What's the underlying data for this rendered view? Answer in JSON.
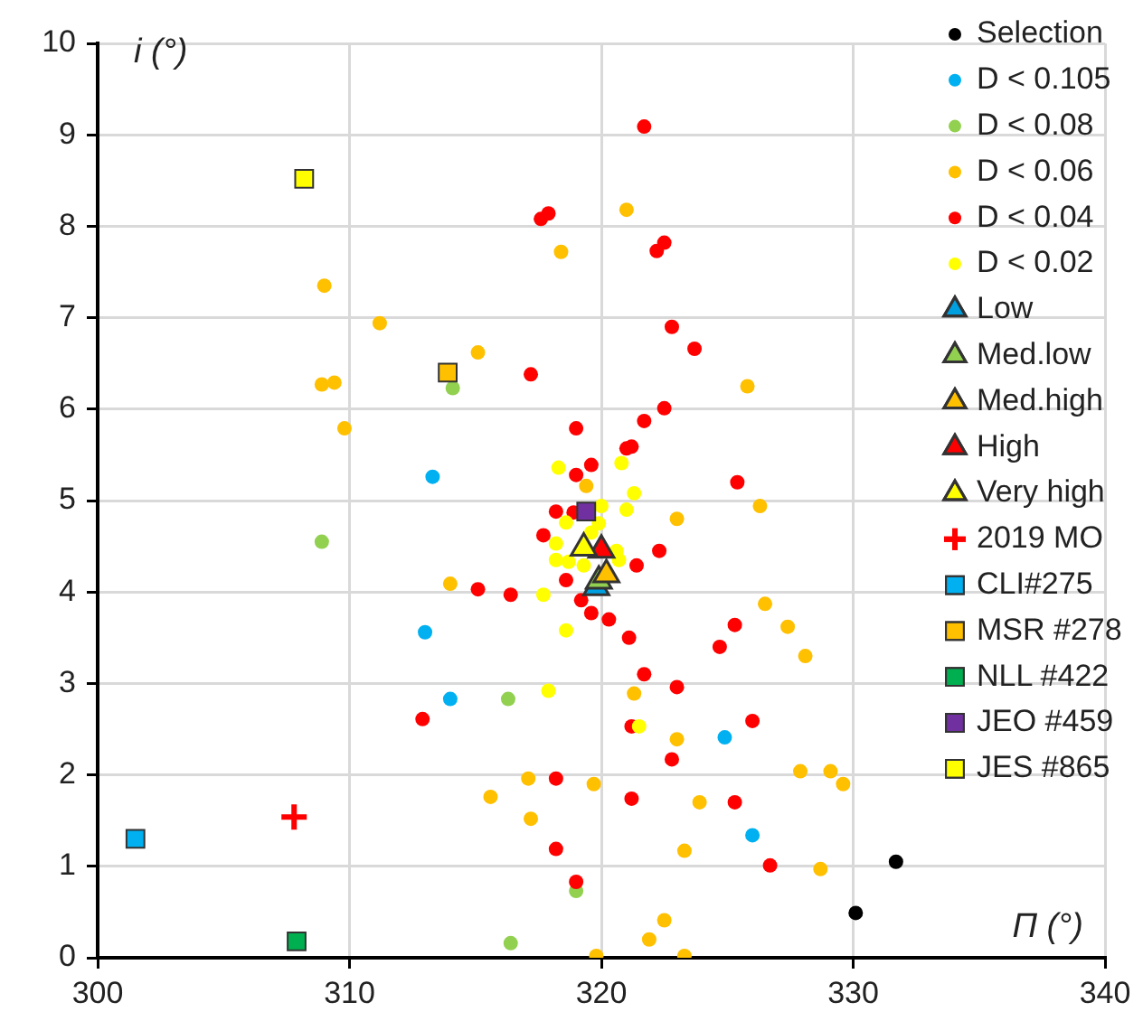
{
  "chart_data": {
    "type": "scatter",
    "xlabel": "Π (°)",
    "ylabel": "i (°)",
    "xlim": [
      300,
      340
    ],
    "xticks": [
      300,
      310,
      320,
      330,
      340
    ],
    "ylim": [
      0,
      10
    ],
    "yticks": [
      0,
      1,
      2,
      3,
      4,
      5,
      6,
      7,
      8,
      9,
      10
    ],
    "grid": true,
    "legend": "top right",
    "series": [
      {
        "name": "Selection",
        "color": "#000000",
        "marker": "circle",
        "x": [
          330.1,
          331.7
        ],
        "values": [
          0.49,
          1.05
        ]
      },
      {
        "name": "D < 0.105",
        "color": "#00b0f0",
        "marker": "circle",
        "x": [
          313.3,
          313.0,
          314.0,
          324.9,
          326.0
        ],
        "values": [
          5.26,
          3.56,
          2.83,
          2.41,
          1.34
        ]
      },
      {
        "name": "D < 0.08",
        "color": "#92d050",
        "marker": "circle",
        "x": [
          314.1,
          308.9,
          316.3,
          319.0,
          316.4
        ],
        "values": [
          6.23,
          4.55,
          2.83,
          0.73,
          0.16
        ]
      },
      {
        "name": "D < 0.06",
        "color": "#ffc000",
        "marker": "circle",
        "x": [
          309.0,
          311.2,
          315.1,
          308.9,
          309.4,
          309.8,
          318.4,
          319.4,
          321.0,
          325.8,
          326.3,
          323.0,
          314.0,
          317.1,
          315.6,
          317.2,
          319.7,
          319.8,
          326.5,
          327.4,
          328.1,
          321.3,
          323.0,
          329.1,
          327.9,
          329.6,
          323.9,
          328.7,
          323.3,
          322.5,
          321.9,
          323.3
        ],
        "values": [
          7.35,
          6.94,
          6.62,
          6.27,
          6.29,
          5.79,
          7.72,
          5.16,
          8.18,
          6.25,
          4.94,
          4.8,
          4.09,
          1.96,
          1.76,
          1.52,
          1.9,
          0.02,
          3.87,
          3.62,
          3.3,
          2.89,
          2.39,
          2.04,
          2.04,
          1.9,
          1.7,
          0.97,
          1.17,
          0.41,
          0.2,
          0.02
        ]
      },
      {
        "name": "D < 0.04",
        "color": "#ff0000",
        "marker": "circle",
        "x": [
          317.6,
          317.9,
          317.2,
          319.0,
          319.6,
          319.0,
          321.7,
          322.2,
          322.5,
          322.8,
          323.7,
          322.5,
          321.7,
          321.0,
          321.2,
          325.4,
          318.2,
          317.7,
          315.1,
          316.4,
          318.6,
          319.6,
          320.3,
          312.9,
          318.2,
          318.2,
          319.0,
          322.3,
          321.4,
          319.2,
          321.1,
          325.3,
          324.7,
          321.7,
          323.0,
          326.0,
          321.2,
          322.8,
          321.2,
          325.3,
          326.7,
          318.9
        ],
        "values": [
          8.08,
          8.14,
          6.38,
          5.79,
          5.39,
          5.28,
          9.09,
          7.73,
          7.82,
          6.9,
          6.66,
          6.01,
          5.87,
          5.57,
          5.59,
          5.2,
          4.88,
          4.62,
          4.03,
          3.97,
          4.13,
          3.77,
          3.7,
          2.61,
          1.96,
          1.19,
          0.83,
          4.45,
          4.29,
          3.91,
          3.5,
          3.64,
          3.4,
          3.1,
          2.96,
          2.59,
          2.53,
          2.17,
          1.74,
          1.7,
          1.01,
          4.87
        ]
      },
      {
        "name": "D < 0.02",
        "color": "#ffff00",
        "marker": "circle",
        "x": [
          318.3,
          320.8,
          321.3,
          318.6,
          318.2,
          318.2,
          318.7,
          319.3,
          317.7,
          318.6,
          317.9,
          321.0,
          320.7,
          321.5,
          320.0,
          319.6,
          319.9,
          320.6
        ],
        "values": [
          5.36,
          5.41,
          5.08,
          4.76,
          4.53,
          4.35,
          4.33,
          4.29,
          3.97,
          3.58,
          2.92,
          4.9,
          4.35,
          2.53,
          4.94,
          4.65,
          4.75,
          4.45
        ]
      },
      {
        "name": "Low",
        "color": "#00a0e0",
        "marker": "triangle",
        "x": [
          319.8
        ],
        "values": [
          4.05
        ]
      },
      {
        "name": "Med.low",
        "color": "#92d050",
        "marker": "triangle",
        "x": [
          319.9
        ],
        "values": [
          4.12
        ]
      },
      {
        "name": "Med.high",
        "color": "#ffc000",
        "marker": "triangle",
        "x": [
          320.2
        ],
        "values": [
          4.19
        ]
      },
      {
        "name": "High",
        "color": "#ff0000",
        "marker": "triangle",
        "x": [
          320.0
        ],
        "values": [
          4.46
        ]
      },
      {
        "name": "Very high",
        "color": "#ffff00",
        "marker": "triangle",
        "x": [
          319.3
        ],
        "values": [
          4.48
        ]
      },
      {
        "name": "2019 MO",
        "color": "#ff0000",
        "marker": "cross",
        "x": [
          307.8
        ],
        "values": [
          1.54
        ]
      },
      {
        "name": "CLI#275",
        "color": "#00b0f0",
        "marker": "square",
        "x": [
          301.5
        ],
        "values": [
          1.3
        ]
      },
      {
        "name": "MSR #278",
        "color": "#ffc000",
        "marker": "square",
        "x": [
          313.9
        ],
        "values": [
          6.4
        ]
      },
      {
        "name": "NLL #422",
        "color": "#00b050",
        "marker": "square",
        "x": [
          307.9
        ],
        "values": [
          0.18
        ]
      },
      {
        "name": "JEO #459",
        "color": "#7030a0",
        "marker": "square",
        "x": [
          319.4
        ],
        "values": [
          4.88
        ]
      },
      {
        "name": "JES #865",
        "color": "#ffff00",
        "marker": "square",
        "x": [
          308.2
        ],
        "values": [
          8.52
        ]
      }
    ]
  }
}
